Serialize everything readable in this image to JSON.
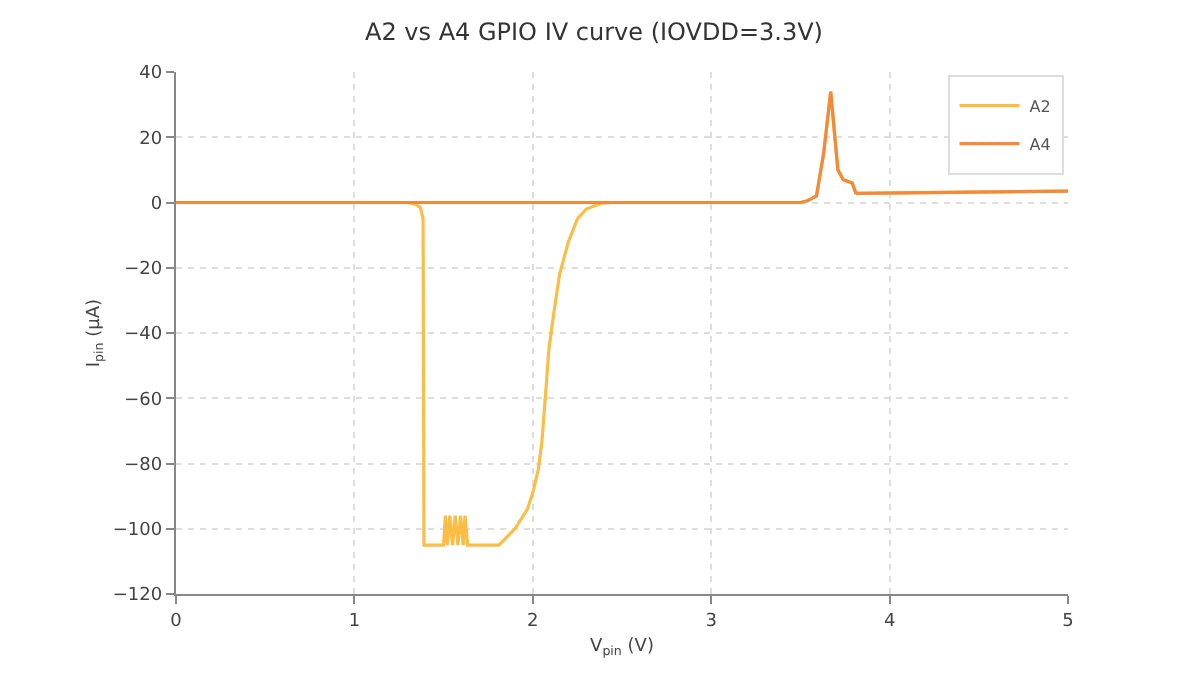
{
  "chart_data": {
    "type": "line",
    "title": "A2 vs A4 GPIO IV curve (IOVDD=3.3V)",
    "xlabel": "V$_{pin}$ (V)",
    "ylabel": "I$_{pin}$ (μA)",
    "xlim": [
      0,
      5
    ],
    "ylim": [
      -120,
      40
    ],
    "xticks": [
      0,
      1,
      2,
      3,
      4,
      5
    ],
    "yticks": [
      -120,
      -100,
      -80,
      -60,
      -40,
      -20,
      0,
      20,
      40
    ],
    "grid": true,
    "legend": "top right",
    "marker": "none",
    "line_style": "solid",
    "series": [
      {
        "name": "A2",
        "color": "#fbbd45",
        "x": [
          0,
          1.3,
          1.34,
          1.37,
          1.385,
          1.39,
          1.5,
          1.51,
          1.52,
          1.535,
          1.55,
          1.565,
          1.58,
          1.595,
          1.61,
          1.62,
          1.635,
          1.81,
          1.9,
          1.97,
          2.0,
          2.03,
          2.05,
          2.07,
          2.09,
          2.12,
          2.15,
          2.2,
          2.25,
          2.3,
          2.38,
          2.45,
          3.5,
          3.54,
          3.59,
          3.63,
          3.67,
          3.71,
          3.74,
          3.79,
          3.81,
          3.82,
          5
        ],
        "values": [
          0,
          0,
          -0.5,
          -1.5,
          -5,
          -105,
          -105,
          -96,
          -105,
          -96,
          -105,
          -96,
          -105,
          -96,
          -105,
          -96,
          -105,
          -105,
          -100,
          -94,
          -89,
          -82,
          -74,
          -60,
          -45,
          -33,
          -22,
          -12,
          -5,
          -2,
          -0.3,
          0,
          0,
          0.5,
          2,
          15,
          34,
          10,
          7,
          6,
          3,
          2.8,
          3.5
        ]
      },
      {
        "name": "A4",
        "color": "#f4893a",
        "x": [
          0,
          3.5,
          3.54,
          3.59,
          3.63,
          3.67,
          3.71,
          3.74,
          3.79,
          3.81,
          3.82,
          5
        ],
        "values": [
          0,
          0,
          0.5,
          2,
          15,
          34,
          10,
          7,
          6,
          3,
          2.8,
          3.5
        ]
      }
    ]
  }
}
